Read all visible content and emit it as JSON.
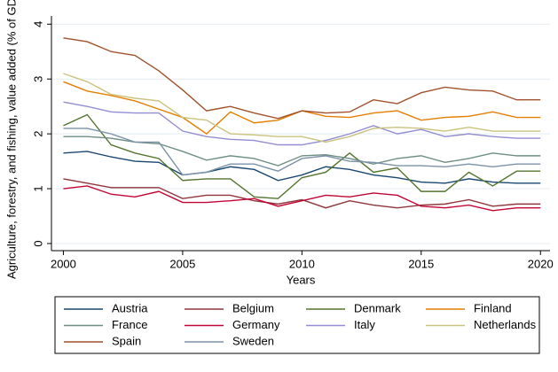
{
  "chart_data": {
    "type": "line",
    "ylabel": "Agriculture, forestry, and fishing, value added (% of GDP)",
    "xlabel": "Years",
    "x": [
      2000,
      2001,
      2002,
      2003,
      2004,
      2005,
      2006,
      2007,
      2008,
      2009,
      2010,
      2011,
      2012,
      2013,
      2014,
      2015,
      2016,
      2017,
      2018,
      2019,
      2020
    ],
    "xlim": [
      1999.5,
      2020.4
    ],
    "xticks": [
      2000,
      2005,
      2010,
      2015,
      2020
    ],
    "ylim": [
      -0.13,
      4.15
    ],
    "yticks": [
      0,
      1,
      2,
      3,
      4
    ],
    "grid": true,
    "legend": "bottom",
    "series": [
      {
        "name": "Austria",
        "color": "#1a476f",
        "values": [
          1.65,
          1.68,
          1.58,
          1.5,
          1.48,
          1.25,
          1.3,
          1.4,
          1.35,
          1.15,
          1.25,
          1.4,
          1.35,
          1.25,
          1.2,
          1.12,
          1.1,
          1.18,
          1.12,
          1.1,
          1.1
        ]
      },
      {
        "name": "Belgium",
        "color": "#90353b",
        "values": [
          1.18,
          1.1,
          1.02,
          1.02,
          1.02,
          0.82,
          0.88,
          0.88,
          0.78,
          0.72,
          0.8,
          0.65,
          0.78,
          0.7,
          0.65,
          0.7,
          0.72,
          0.8,
          0.68,
          0.72,
          0.72
        ]
      },
      {
        "name": "Denmark",
        "color": "#55752f",
        "values": [
          2.15,
          2.35,
          1.8,
          1.65,
          1.55,
          1.15,
          1.18,
          1.18,
          0.85,
          0.82,
          1.2,
          1.3,
          1.65,
          1.3,
          1.38,
          0.95,
          0.95,
          1.3,
          1.05,
          1.32,
          1.32
        ]
      },
      {
        "name": "Finland",
        "color": "#e37e00",
        "values": [
          2.95,
          2.78,
          2.7,
          2.6,
          2.45,
          2.3,
          2.0,
          2.4,
          2.2,
          2.25,
          2.42,
          2.32,
          2.3,
          2.38,
          2.42,
          2.25,
          2.3,
          2.32,
          2.4,
          2.3,
          2.3
        ]
      },
      {
        "name": "France",
        "color": "#6e8e84",
        "values": [
          1.95,
          1.95,
          1.92,
          1.85,
          1.82,
          1.68,
          1.52,
          1.6,
          1.55,
          1.42,
          1.6,
          1.62,
          1.55,
          1.45,
          1.55,
          1.6,
          1.48,
          1.55,
          1.65,
          1.6,
          1.6
        ]
      },
      {
        "name": "Germany",
        "color": "#c10534",
        "values": [
          1.0,
          1.05,
          0.9,
          0.85,
          0.95,
          0.75,
          0.75,
          0.78,
          0.82,
          0.68,
          0.78,
          0.88,
          0.85,
          0.92,
          0.88,
          0.68,
          0.65,
          0.7,
          0.6,
          0.65,
          0.65
        ]
      },
      {
        "name": "Italy",
        "color": "#938dd2",
        "values": [
          2.58,
          2.5,
          2.4,
          2.38,
          2.38,
          2.05,
          1.95,
          1.9,
          1.88,
          1.8,
          1.8,
          1.88,
          2.0,
          2.15,
          2.0,
          2.08,
          1.95,
          2.0,
          1.95,
          1.92,
          1.92
        ]
      },
      {
        "name": "Netherlands",
        "color": "#cac27e",
        "values": [
          3.1,
          2.95,
          2.72,
          2.65,
          2.6,
          2.3,
          2.25,
          2.0,
          1.98,
          1.95,
          1.95,
          1.85,
          1.95,
          2.1,
          2.12,
          2.1,
          2.05,
          2.12,
          2.05,
          2.05,
          2.05
        ]
      },
      {
        "name": "Spain",
        "color": "#a0522d",
        "values": [
          3.75,
          3.68,
          3.5,
          3.43,
          3.15,
          2.8,
          2.42,
          2.5,
          2.38,
          2.28,
          2.42,
          2.38,
          2.4,
          2.62,
          2.55,
          2.75,
          2.85,
          2.8,
          2.78,
          2.62,
          2.62
        ]
      },
      {
        "name": "Sweden",
        "color": "#7b92a8",
        "values": [
          2.1,
          2.1,
          2.0,
          1.85,
          1.85,
          1.25,
          1.3,
          1.45,
          1.45,
          1.32,
          1.55,
          1.6,
          1.5,
          1.48,
          1.42,
          1.42,
          1.4,
          1.45,
          1.4,
          1.45,
          1.45
        ]
      }
    ]
  }
}
